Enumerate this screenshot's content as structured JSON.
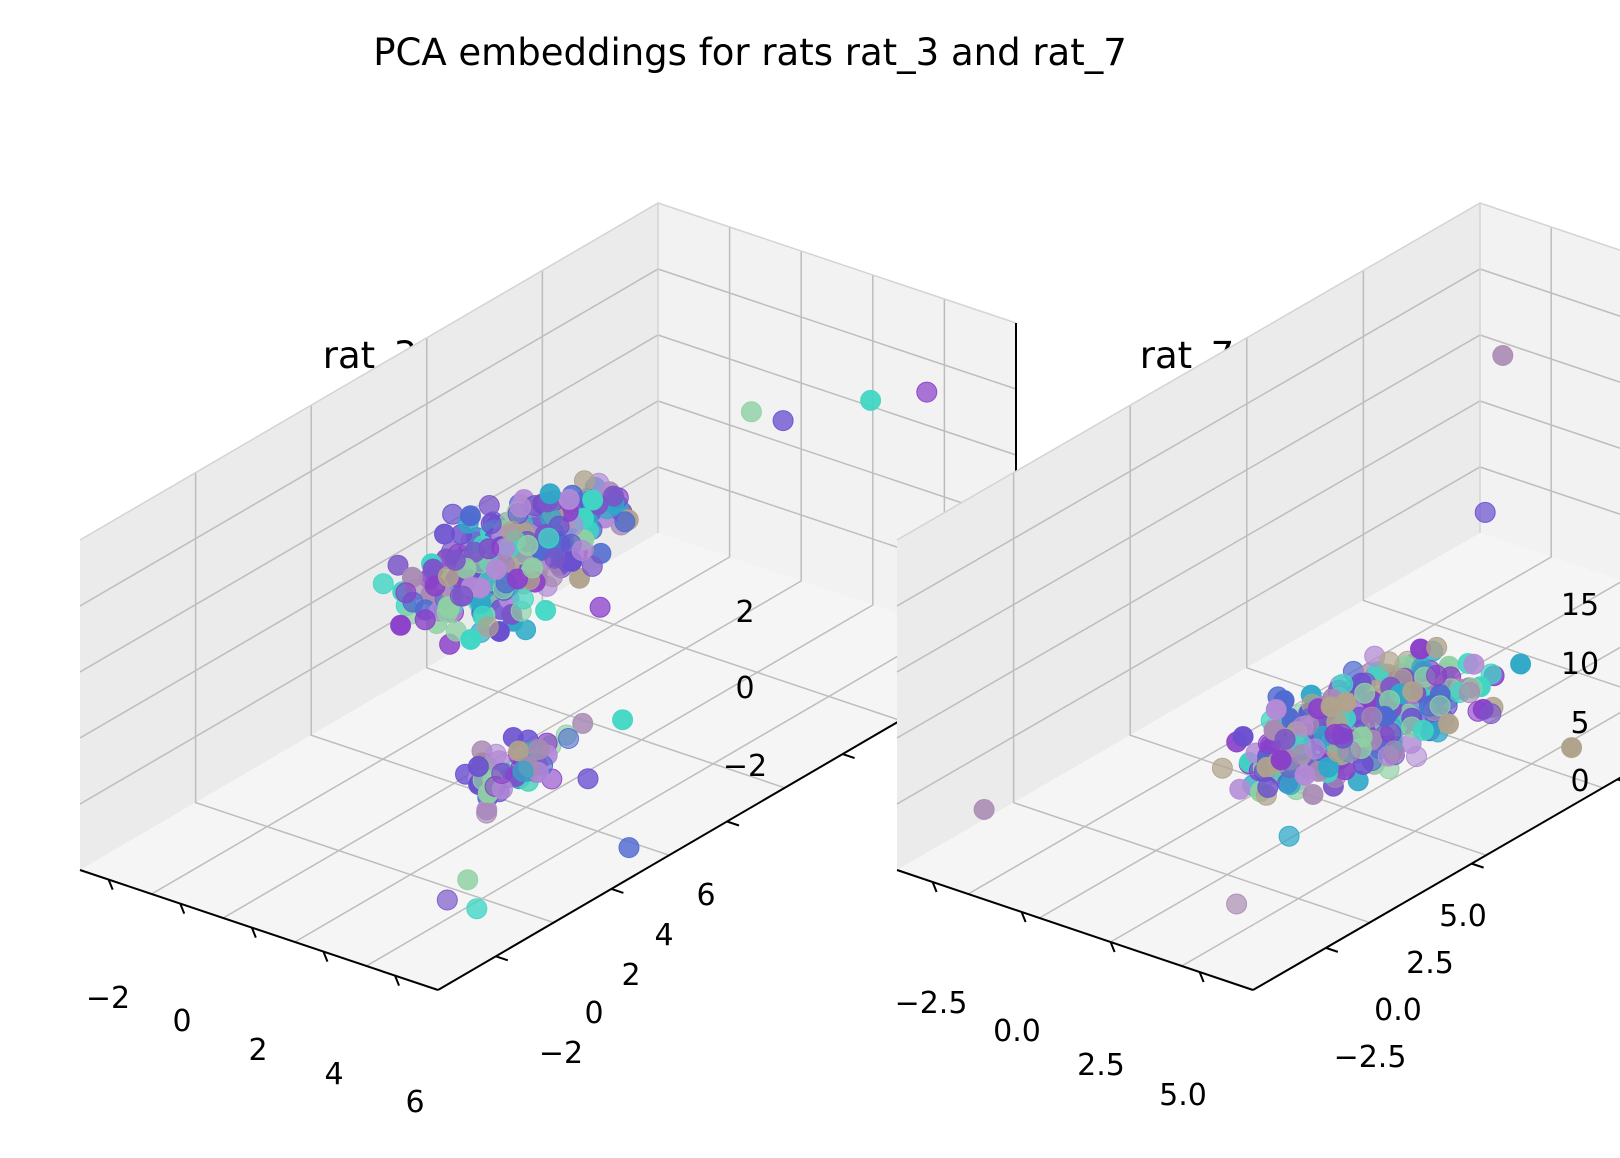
{
  "figure": {
    "title": "PCA embeddings for rats rat_3 and rat_7"
  },
  "chart_data": [
    {
      "type": "scatter",
      "subtype": "3d",
      "title": "rat_3",
      "xlabel": "",
      "ylabel": "",
      "zlabel": "",
      "x_ticks": [
        "−2",
        "0",
        "2",
        "4",
        "6"
      ],
      "y_ticks": [
        "−2",
        "0",
        "2",
        "4",
        "6"
      ],
      "z_ticks": [
        "−2",
        "0",
        "2"
      ],
      "xlim": [
        -3,
        7
      ],
      "ylim": [
        -3,
        7
      ],
      "zlim": [
        -3.5,
        3.5
      ],
      "grid": true,
      "colors": [
        "#3fd6c4",
        "#8fd1a3",
        "#b0a38c",
        "#a88ab2",
        "#8a3fc9",
        "#6a4fd0",
        "#4f6ad0",
        "#2fa8c8",
        "#7a55c8",
        "#b38ad6"
      ],
      "points": [
        {
          "x": 5.2,
          "y": 5.6,
          "z": 2.4
        },
        {
          "x": 5.8,
          "y": 6.2,
          "z": 2.3
        },
        {
          "x": 5.0,
          "y": -1.6,
          "z": -3.1
        },
        {
          "x": 5.5,
          "y": -1.4,
          "z": -3.3
        },
        {
          "x": 4.6,
          "y": -1.0,
          "z": -3.2
        },
        {
          "x": 6.2,
          "y": 0.8,
          "z": -3.4
        },
        {
          "x": -2.6,
          "y": 2.0,
          "z": -0.9
        },
        {
          "x": 3.0,
          "y": 4.9,
          "z": 2.1
        },
        {
          "x": 3.4,
          "y": 5.2,
          "z": 1.8
        }
      ],
      "series": [
        {
          "name": "",
          "cluster_center": [
            1.0,
            2.0,
            0.6
          ],
          "spread": [
            1.4,
            1.8,
            1.1
          ],
          "count": 340
        },
        {
          "name": "",
          "cluster_center": [
            3.8,
            0.4,
            -2.0
          ],
          "spread": [
            1.2,
            1.2,
            0.7
          ],
          "count": 60
        }
      ]
    },
    {
      "type": "scatter",
      "subtype": "3d",
      "title": "rat_7",
      "xlabel": "",
      "ylabel": "",
      "zlabel": "",
      "x_ticks": [
        "−2.5",
        "0.0",
        "2.5",
        "5.0"
      ],
      "y_ticks": [
        "−2.5",
        "0.0",
        "2.5",
        "5.0"
      ],
      "z_ticks": [
        "0",
        "5",
        "10",
        "15"
      ],
      "xlim": [
        -4,
        7
      ],
      "ylim": [
        -4,
        7
      ],
      "zlim": [
        -2,
        19
      ],
      "grid": true,
      "colors": [
        "#3fd6c4",
        "#8fd1a3",
        "#b0a38c",
        "#a88ab2",
        "#8a3fc9",
        "#6a4fd0",
        "#4f6ad0",
        "#2fa8c8",
        "#7a55c8",
        "#b38ad6"
      ],
      "points": [
        {
          "x": 0.8,
          "y": 4.5,
          "z": 17.5
        },
        {
          "x": 1.4,
          "y": 3.8,
          "z": 9.3
        },
        {
          "x": -3.6,
          "y": -2.6,
          "z": -0.6
        },
        {
          "x": 6.2,
          "y": 2.5,
          "z": 0.2
        },
        {
          "x": 4.2,
          "y": -2.6,
          "z": -1.2
        }
      ],
      "series": [
        {
          "name": "",
          "cluster_center": [
            1.4,
            1.4,
            0.5
          ],
          "spread": [
            2.2,
            2.2,
            1.0
          ],
          "count": 420
        }
      ]
    }
  ]
}
